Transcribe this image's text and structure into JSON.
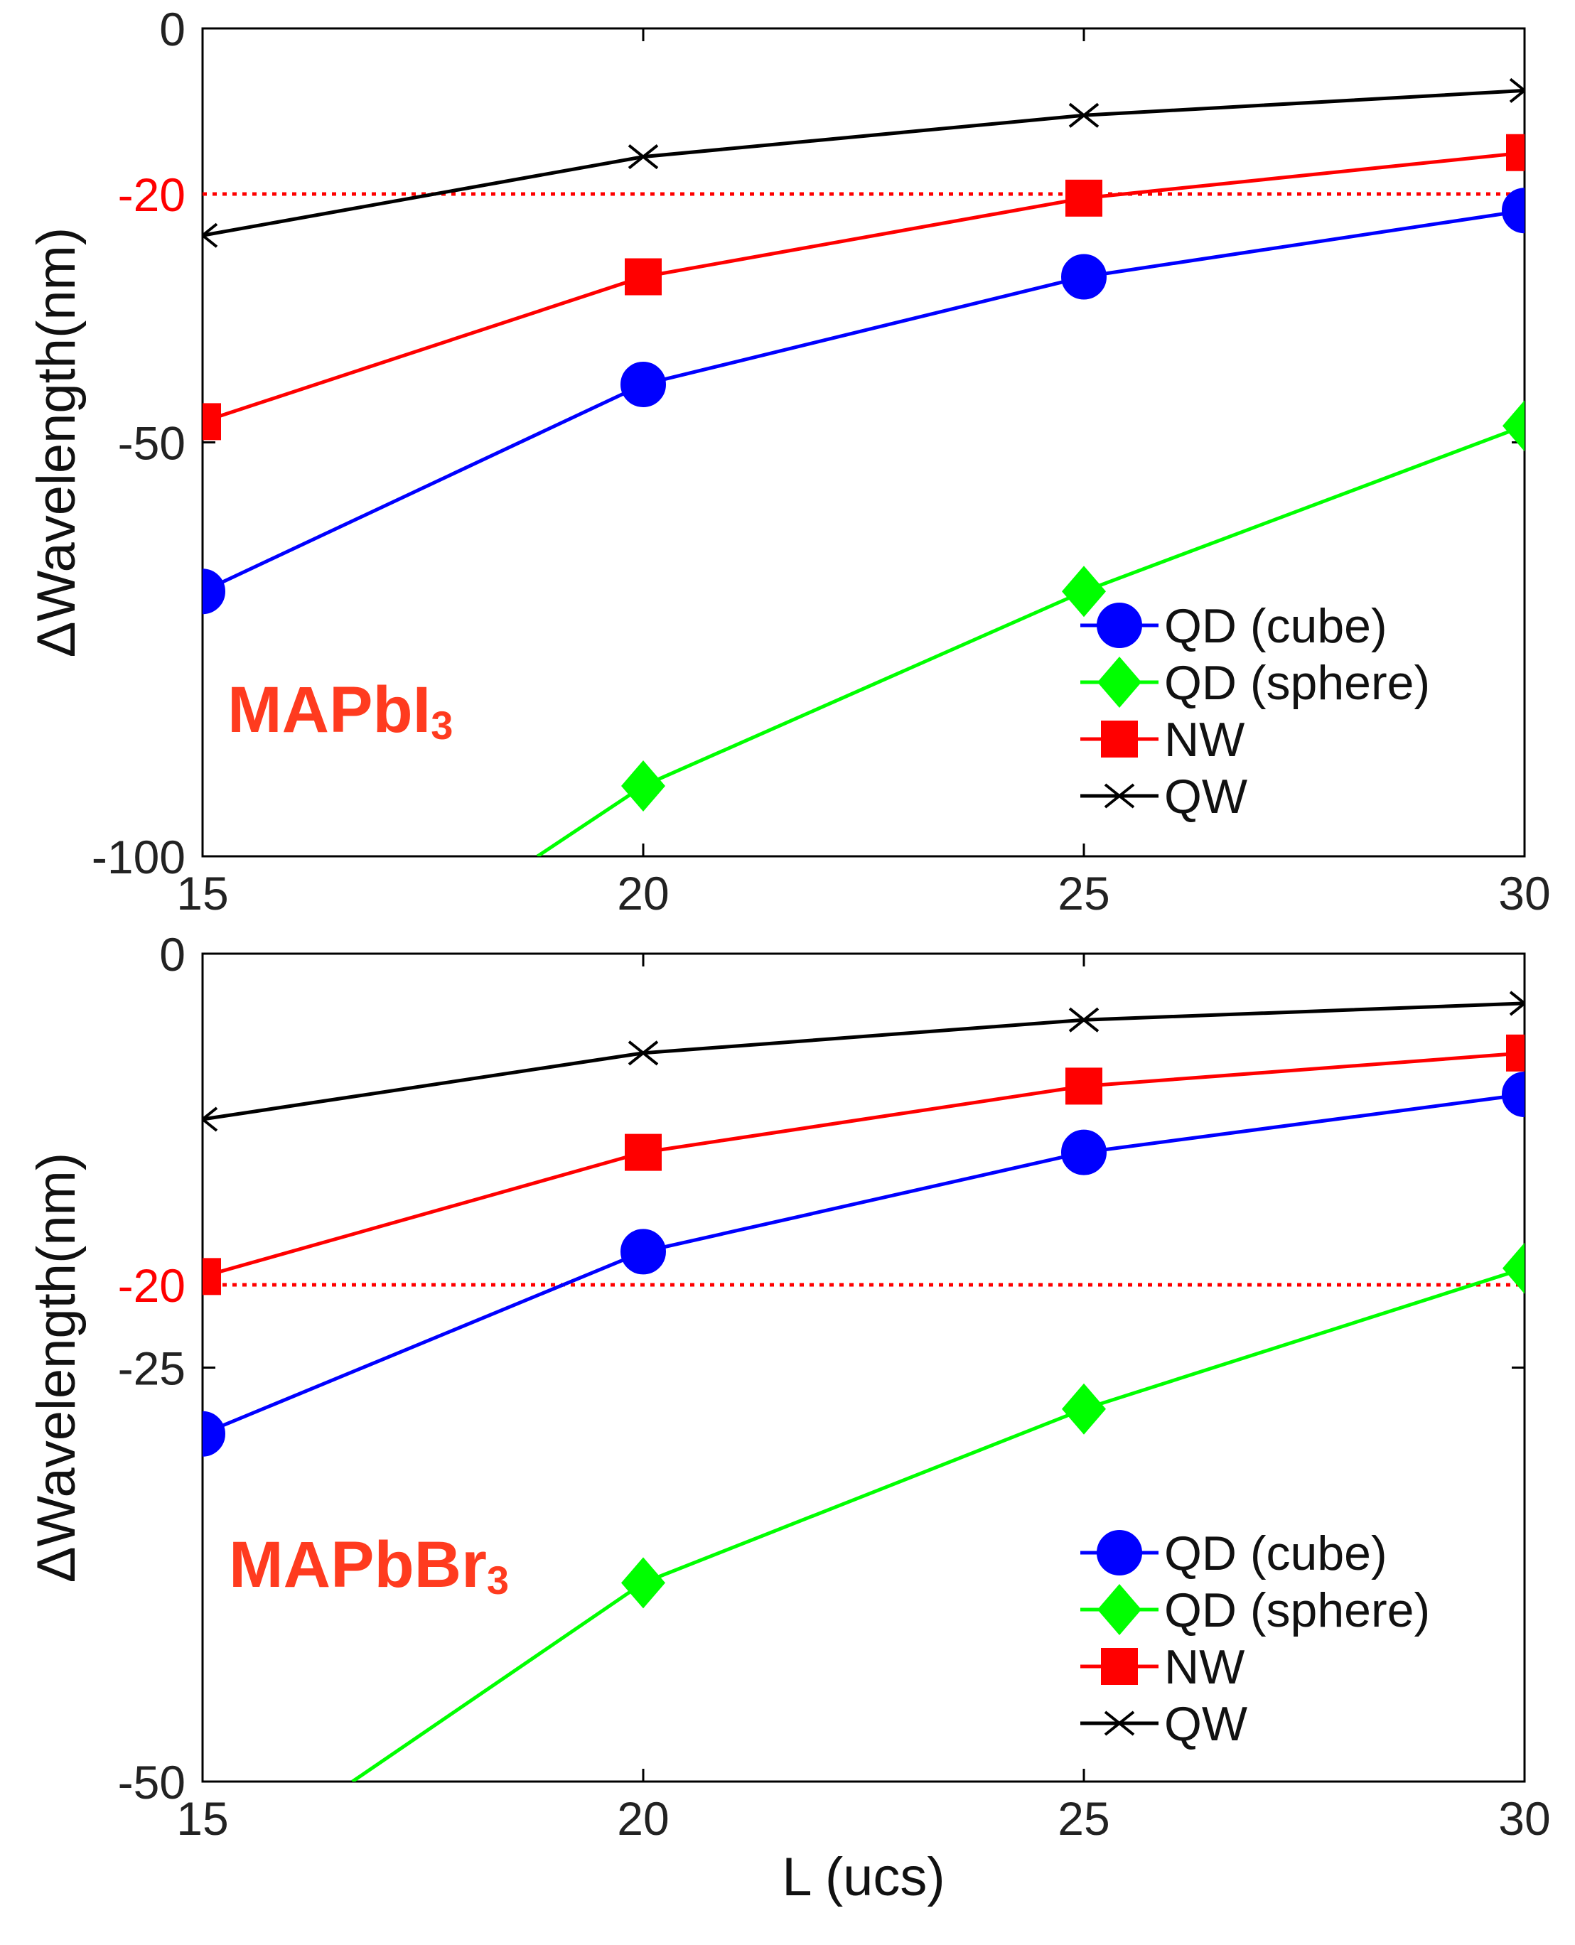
{
  "chart_data": [
    {
      "type": "line",
      "panel": "top",
      "material_label": "MAPbI",
      "material_subscript": "3",
      "xlabel": "",
      "ylabel": "ΔWavelength(nm)",
      "xlim": [
        15,
        30
      ],
      "ylim": [
        -100,
        0
      ],
      "xticks": [
        "15",
        "20",
        "25",
        "30"
      ],
      "yticks": [
        "0",
        "-50",
        "-100"
      ],
      "reference_line": {
        "value": -20,
        "label": "-20",
        "color": "#ff0000",
        "style": "dotted"
      },
      "legend_position": "bottom-right",
      "series": [
        {
          "name": "QD (cube)",
          "color": "#0000ff",
          "marker": "circle",
          "x": [
            15,
            20,
            25,
            30
          ],
          "y": [
            -68,
            -43,
            -30,
            -22
          ]
        },
        {
          "name": "QD (sphere)",
          "color": "#00ff00",
          "marker": "diamond",
          "x": [
            18.8,
            20,
            25,
            30
          ],
          "y": [
            -100,
            -91.5,
            -68,
            -48
          ]
        },
        {
          "name": "NW",
          "color": "#ff0000",
          "marker": "square",
          "x": [
            15,
            20,
            25,
            30
          ],
          "y": [
            -47.5,
            -30,
            -20.5,
            -15
          ]
        },
        {
          "name": "QW",
          "color": "#000000",
          "marker": "x",
          "x": [
            15,
            20,
            25,
            30
          ],
          "y": [
            -25,
            -15.5,
            -10.5,
            -7.5
          ]
        }
      ]
    },
    {
      "type": "line",
      "panel": "bottom",
      "material_label": "MAPbBr",
      "material_subscript": "3",
      "xlabel": "L (ucs)",
      "ylabel": "ΔWavelength(nm)",
      "xlim": [
        15,
        30
      ],
      "ylim": [
        -50,
        0
      ],
      "xticks": [
        "15",
        "20",
        "25",
        "30"
      ],
      "yticks": [
        "0",
        "-25",
        "-50"
      ],
      "reference_line": {
        "value": -20,
        "label": "-20",
        "color": "#ff0000",
        "style": "dotted"
      },
      "legend_position": "bottom-right",
      "series": [
        {
          "name": "QD (cube)",
          "color": "#0000ff",
          "marker": "circle",
          "x": [
            15,
            20,
            25,
            30
          ],
          "y": [
            -29,
            -18,
            -12,
            -8.5
          ]
        },
        {
          "name": "QD (sphere)",
          "color": "#00ff00",
          "marker": "diamond",
          "x": [
            16.7,
            20,
            25,
            30
          ],
          "y": [
            -50,
            -38,
            -27.5,
            -19
          ]
        },
        {
          "name": "NW",
          "color": "#ff0000",
          "marker": "square",
          "x": [
            15,
            20,
            25,
            30
          ],
          "y": [
            -19.5,
            -12,
            -8,
            -6
          ]
        },
        {
          "name": "QW",
          "color": "#000000",
          "marker": "x",
          "x": [
            15,
            20,
            25,
            30
          ],
          "y": [
            -10,
            -6,
            -4,
            -3
          ]
        }
      ]
    }
  ]
}
